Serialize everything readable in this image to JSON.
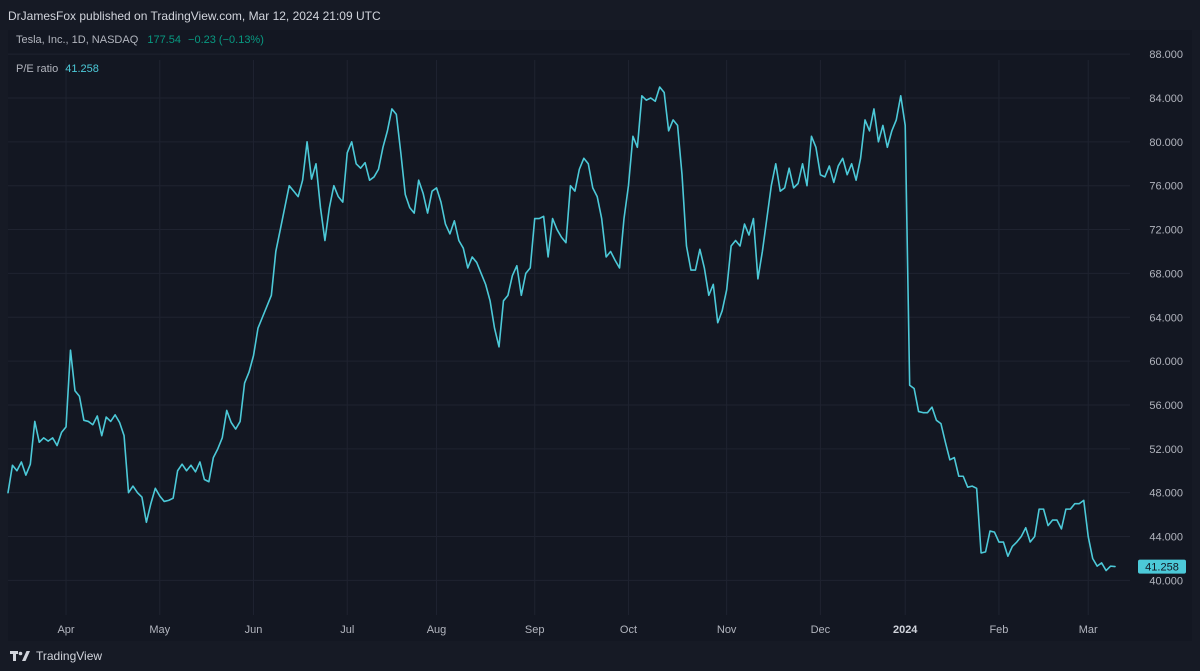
{
  "header": {
    "publisher_text": "DrJamesFox published on TradingView.com, Mar 12, 2024 21:09 UTC"
  },
  "legend": {
    "symbol": "Tesla, Inc., 1D, NASDAQ",
    "price": "177.54",
    "change": "−0.23 (−0.13%)",
    "indicator_name": "P/E ratio",
    "indicator_value": "41.258"
  },
  "footer": {
    "brand": "TradingView",
    "logo_icon": "tradingview-logo-icon"
  },
  "colors": {
    "background": "#131722",
    "line": "#4cc9d8",
    "grid": "#1f2330",
    "axis_text": "#b2b5be",
    "positive": "#089981"
  },
  "chart_data": {
    "type": "line",
    "series": [
      {
        "name": "P/E ratio",
        "values": [
          48.0,
          50.5,
          50.0,
          50.8,
          49.6,
          50.6,
          54.5,
          52.6,
          53.0,
          52.7,
          53.0,
          52.3,
          53.5,
          54.0,
          61.0,
          57.3,
          56.8,
          54.6,
          54.5,
          54.2,
          55.0,
          53.2,
          54.9,
          54.5,
          55.1,
          54.4,
          53.2,
          48.0,
          48.6,
          48.0,
          47.6,
          45.3,
          47.0,
          48.4,
          47.7,
          47.2,
          47.3,
          47.5,
          50.0,
          50.6,
          50.0,
          50.5,
          49.9,
          50.8,
          49.2,
          49.0,
          51.2,
          52.0,
          53.0,
          55.5,
          54.4,
          53.8,
          54.5,
          58.0,
          59.0,
          60.5,
          63.0,
          64.0,
          65.0,
          66.0,
          70.0,
          72.0,
          74.0,
          76.0,
          75.5,
          75.0,
          76.5,
          80.0,
          76.6,
          78.0,
          74.0,
          71.0,
          74.0,
          76.0,
          75.0,
          74.5,
          79.0,
          80.0,
          78.0,
          77.6,
          78.1,
          76.5,
          76.8,
          77.5,
          79.5,
          81.0,
          83.0,
          82.5,
          79.0,
          75.2,
          74.0,
          73.5,
          76.5,
          75.3,
          73.5,
          75.5,
          75.8,
          74.5,
          72.5,
          71.6,
          72.8,
          71.0,
          70.3,
          68.5,
          69.5,
          69.0,
          68.0,
          67.0,
          65.5,
          63.0,
          61.3,
          65.5,
          66.0,
          67.8,
          68.7,
          66.0,
          68.0,
          68.5,
          73.0,
          73.0,
          73.2,
          69.5,
          73.0,
          72.0,
          71.3,
          70.8,
          76.0,
          75.5,
          77.5,
          78.5,
          78.0,
          75.8,
          75.0,
          73.0,
          69.5,
          70.0,
          69.2,
          68.5,
          73.0,
          76.0,
          80.5,
          79.5,
          84.2,
          83.8,
          84.0,
          83.7,
          85.0,
          84.5,
          81.0,
          82.0,
          81.5,
          77.0,
          70.5,
          68.3,
          68.3,
          70.2,
          68.5,
          66.0,
          67.0,
          63.5,
          64.6,
          66.5,
          70.5,
          71.0,
          70.5,
          72.5,
          71.5,
          73.0,
          67.5,
          70.0,
          73.0,
          76.0,
          78.0,
          75.5,
          75.8,
          77.6,
          75.8,
          76.2,
          78.0,
          76.0,
          80.5,
          79.5,
          77.0,
          76.8,
          77.8,
          76.3,
          77.8,
          78.5,
          77.0,
          78.0,
          76.5,
          78.5,
          82.0,
          81.0,
          83.0,
          80.0,
          81.5,
          79.5,
          81.0,
          82.0,
          84.2,
          81.5,
          57.8,
          57.5,
          55.4,
          55.3,
          55.3,
          55.8,
          54.6,
          54.3,
          52.6,
          51.0,
          51.2,
          49.5,
          49.5,
          48.5,
          48.6,
          48.4,
          42.5,
          42.6,
          44.5,
          44.4,
          43.5,
          43.5,
          42.2,
          43.1,
          43.5,
          44.0,
          44.8,
          43.5,
          44.0,
          46.5,
          46.5,
          45.0,
          45.5,
          45.5,
          44.7,
          46.5,
          46.5,
          47.0,
          47.0,
          47.3,
          44.0,
          42.0,
          41.3,
          41.6,
          40.9,
          41.3,
          41.258
        ]
      }
    ],
    "x_labels": [
      "Apr",
      "May",
      "Jun",
      "Jul",
      "Aug",
      "Sep",
      "Oct",
      "Nov",
      "Dec",
      "2024",
      "Feb",
      "Mar"
    ],
    "x_label_index": [
      13,
      34,
      55,
      76,
      96,
      118,
      139,
      161,
      182,
      201,
      222,
      242
    ],
    "x_emphasis": "2024",
    "y_ticks": [
      "40.000",
      "44.000",
      "48.000",
      "52.000",
      "56.000",
      "60.000",
      "64.000",
      "68.000",
      "72.000",
      "76.000",
      "80.000",
      "84.000",
      "88.000"
    ],
    "ylim": [
      37.3,
      90.2
    ],
    "last_value": "41.258",
    "grid": true,
    "legend_position": "top-left"
  }
}
